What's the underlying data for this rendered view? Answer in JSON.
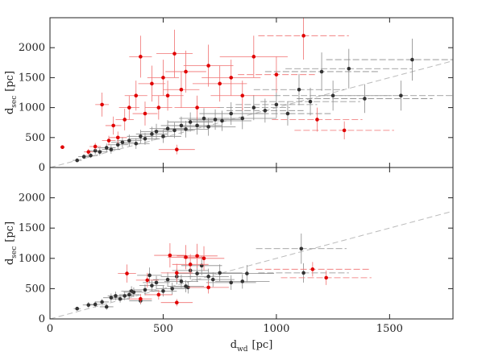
{
  "chart_data": [
    {
      "type": "scatter",
      "xlim": [
        0,
        1780
      ],
      "ylim": [
        0,
        2500
      ],
      "xticks": [
        0,
        500,
        1000,
        1500
      ],
      "xtick_labels": false,
      "yticks": [
        0,
        500,
        1000,
        1500,
        2000
      ],
      "diagonal": true,
      "y_label": {
        "main": "d",
        "sub": "sec",
        "unit": "[pc]"
      },
      "series": [
        {
          "color": "#333333",
          "error_color": "#8a8a8a",
          "x": [
            120,
            150,
            180,
            200,
            220,
            250,
            270,
            300,
            320,
            350,
            380,
            400,
            420,
            450,
            470,
            500,
            520,
            550,
            580,
            600,
            620,
            650,
            680,
            700,
            730,
            760,
            800,
            850,
            900,
            950,
            1000,
            1050,
            1100,
            1150,
            1200,
            1250,
            1320,
            1390,
            1550,
            1600
          ],
          "y": [
            120,
            180,
            200,
            280,
            260,
            330,
            300,
            380,
            420,
            450,
            400,
            520,
            480,
            560,
            600,
            520,
            650,
            620,
            700,
            640,
            760,
            700,
            820,
            680,
            800,
            780,
            900,
            820,
            1000,
            950,
            1050,
            900,
            1300,
            1100,
            1600,
            1200,
            1650,
            1150,
            1200,
            1800
          ],
          "xerr": [
            20,
            25,
            30,
            30,
            35,
            40,
            40,
            45,
            50,
            55,
            60,
            60,
            65,
            70,
            70,
            80,
            80,
            90,
            90,
            100,
            100,
            110,
            110,
            120,
            120,
            130,
            140,
            150,
            160,
            170,
            180,
            190,
            200,
            220,
            250,
            260,
            280,
            300,
            350,
            380
          ],
          "yerr": [
            30,
            40,
            40,
            60,
            60,
            70,
            70,
            80,
            90,
            100,
            90,
            110,
            100,
            120,
            130,
            110,
            140,
            130,
            150,
            140,
            160,
            150,
            170,
            150,
            170,
            170,
            190,
            180,
            210,
            200,
            220,
            200,
            260,
            230,
            320,
            250,
            330,
            240,
            250,
            350
          ]
        },
        {
          "color": "#e00000",
          "error_color": "#f07070",
          "x": [
            55,
            170,
            200,
            230,
            260,
            280,
            300,
            330,
            350,
            380,
            400,
            420,
            450,
            480,
            500,
            520,
            550,
            580,
            600,
            650,
            700,
            750,
            800,
            850,
            900,
            1000,
            1120,
            1180,
            1300,
            560
          ],
          "y": [
            340,
            260,
            350,
            1050,
            450,
            700,
            500,
            800,
            1000,
            1200,
            1850,
            900,
            1400,
            1000,
            1500,
            1200,
            1900,
            1300,
            1600,
            1000,
            1700,
            1400,
            1500,
            1200,
            1850,
            1550,
            2200,
            800,
            620,
            300
          ],
          "xerr": [
            10,
            20,
            25,
            30,
            30,
            35,
            40,
            40,
            45,
            50,
            50,
            55,
            60,
            60,
            70,
            70,
            80,
            80,
            90,
            100,
            110,
            120,
            130,
            140,
            150,
            170,
            200,
            200,
            220,
            80
          ],
          "yerr": [
            30,
            50,
            60,
            200,
            80,
            150,
            100,
            180,
            200,
            250,
            350,
            200,
            300,
            200,
            300,
            250,
            400,
            300,
            350,
            200,
            350,
            300,
            300,
            250,
            350,
            300,
            400,
            200,
            150,
            80
          ]
        }
      ]
    },
    {
      "type": "scatter",
      "xlim": [
        0,
        1780
      ],
      "ylim": [
        0,
        2500
      ],
      "xticks": [
        0,
        500,
        1000,
        1500
      ],
      "xtick_labels": true,
      "yticks": [
        0,
        500,
        1000,
        1500,
        2000
      ],
      "diagonal": true,
      "y_label": {
        "main": "d",
        "sub": "sec",
        "unit": "[pc]"
      },
      "x_label": {
        "main": "d",
        "sub": "wd",
        "unit": "[pc]"
      },
      "series": [
        {
          "color": "#333333",
          "error_color": "#8a8a8a",
          "x": [
            120,
            170,
            200,
            230,
            250,
            270,
            290,
            310,
            330,
            350,
            370,
            400,
            420,
            450,
            470,
            500,
            520,
            540,
            560,
            580,
            600,
            620,
            650,
            670,
            700,
            720,
            750,
            800,
            850,
            870,
            1110,
            1120,
            360,
            440,
            610
          ],
          "y": [
            170,
            230,
            240,
            280,
            200,
            350,
            380,
            330,
            380,
            400,
            440,
            300,
            480,
            550,
            600,
            460,
            650,
            500,
            700,
            620,
            540,
            800,
            750,
            880,
            700,
            650,
            760,
            600,
            620,
            750,
            1160,
            760,
            460,
            720,
            520
          ],
          "xerr": [
            15,
            25,
            25,
            30,
            30,
            35,
            35,
            40,
            40,
            45,
            45,
            50,
            50,
            55,
            60,
            60,
            65,
            70,
            70,
            75,
            80,
            80,
            85,
            90,
            90,
            95,
            100,
            110,
            120,
            120,
            200,
            200,
            45,
            55,
            80
          ],
          "yerr": [
            30,
            50,
            50,
            50,
            50,
            70,
            70,
            60,
            70,
            80,
            80,
            60,
            90,
            100,
            110,
            90,
            120,
            100,
            130,
            110,
            100,
            150,
            140,
            160,
            130,
            120,
            140,
            120,
            120,
            140,
            250,
            160,
            80,
            130,
            100
          ]
        },
        {
          "color": "#e00000",
          "error_color": "#f07070",
          "x": [
            340,
            400,
            530,
            560,
            600,
            650,
            680,
            700,
            1160,
            1220,
            430,
            560,
            480,
            620
          ],
          "y": [
            750,
            330,
            1050,
            270,
            1020,
            1040,
            1000,
            520,
            820,
            680,
            640,
            760,
            400,
            900
          ],
          "xerr": [
            40,
            50,
            70,
            70,
            80,
            90,
            90,
            90,
            250,
            200,
            50,
            70,
            60,
            80
          ],
          "yerr": [
            150,
            80,
            200,
            60,
            200,
            200,
            200,
            100,
            120,
            120,
            120,
            150,
            80,
            170
          ]
        }
      ]
    }
  ]
}
